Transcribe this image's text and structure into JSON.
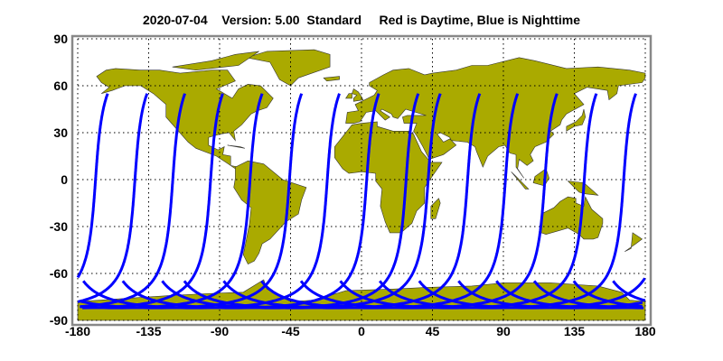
{
  "title": {
    "date": "2020-07-04",
    "version": "Version: 5.00",
    "mode": "Standard",
    "legend": "Red is Daytime, Blue is Nighttime"
  },
  "chart_data": {
    "type": "map",
    "projection": "equirectangular",
    "xlim": [
      -180,
      180
    ],
    "ylim": [
      -90,
      90
    ],
    "xticks": [
      -180,
      -135,
      -90,
      -45,
      0,
      45,
      90,
      135,
      180
    ],
    "yticks": [
      90,
      60,
      30,
      0,
      -30,
      -60,
      -90
    ],
    "xtick_labels": [
      "-180",
      "-135",
      "-90",
      "-45",
      "0",
      "45",
      "90",
      "135",
      "180"
    ],
    "ytick_labels": [
      "90",
      "60",
      "30",
      "0",
      "-30",
      "-60",
      "-90"
    ],
    "grid": true,
    "land_color": "#aaaa00",
    "night_track_color": "#0000ff",
    "day_track_color": "#ff0000",
    "tracks": {
      "type": "satellite ground tracks",
      "end_lat": 55,
      "min_lat": -82,
      "end_lons": [
        -161,
        -136,
        -112,
        -88,
        -63,
        -38,
        -14,
        11,
        36,
        50,
        75,
        99,
        124,
        149,
        174
      ],
      "color": "#0000ff"
    }
  }
}
